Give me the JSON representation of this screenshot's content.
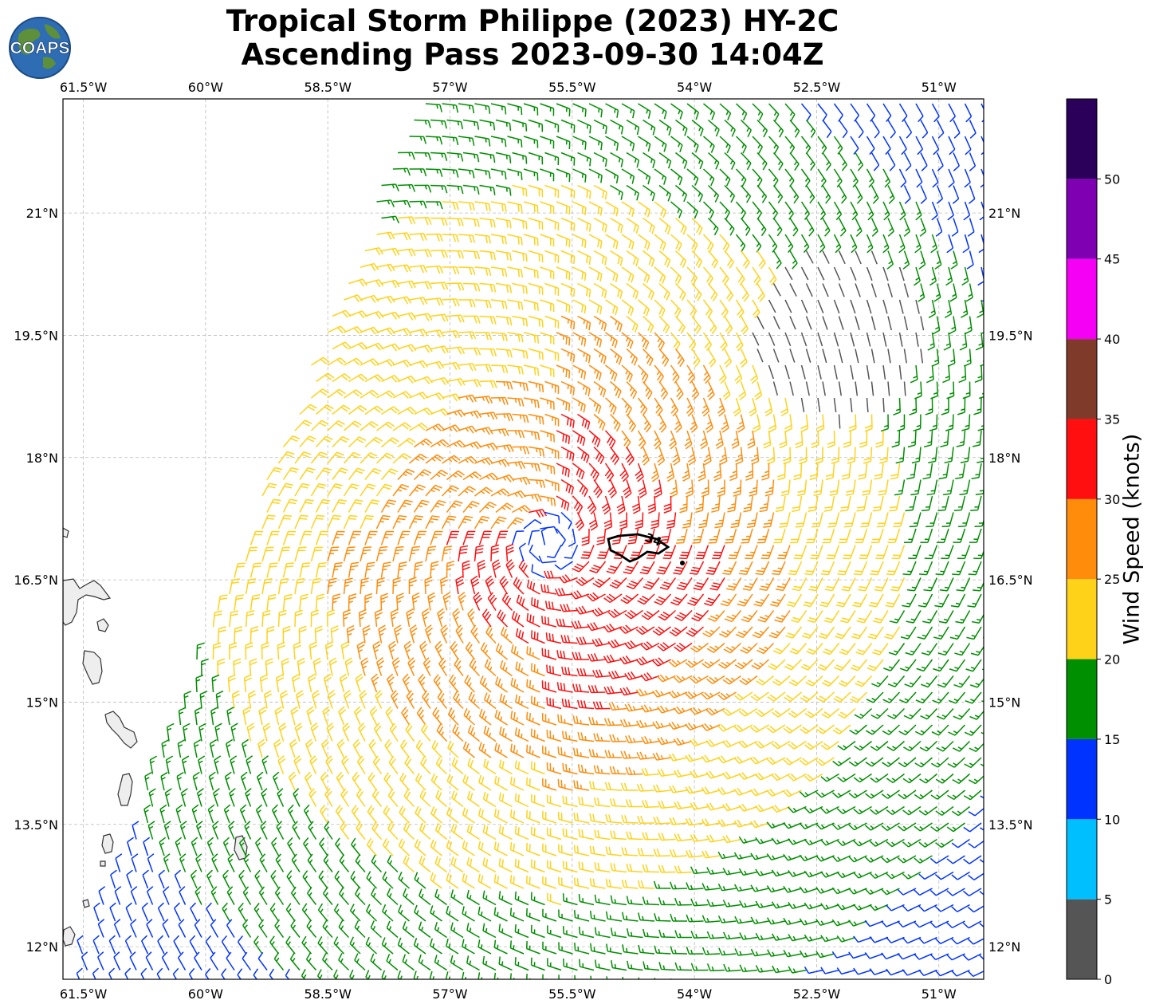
{
  "title": {
    "line1": "Tropical Storm Philippe (2023) HY-2C",
    "line2": "Ascending Pass 2023-09-30 14:04Z"
  },
  "logo": {
    "text": "COAPS",
    "icon": "globe-icon"
  },
  "map": {
    "lon_range": [
      -61.75,
      -50.45
    ],
    "lat_range": [
      11.6,
      22.4
    ],
    "lon_ticks": [
      {
        "value": -61.5,
        "label": "61.5°W"
      },
      {
        "value": -60,
        "label": "60°W"
      },
      {
        "value": -58.5,
        "label": "58.5°W"
      },
      {
        "value": -57,
        "label": "57°W"
      },
      {
        "value": -55.5,
        "label": "55.5°W"
      },
      {
        "value": -54,
        "label": "54°W"
      },
      {
        "value": -52.5,
        "label": "52.5°W"
      },
      {
        "value": -51,
        "label": "51°W"
      }
    ],
    "lat_ticks": [
      {
        "value": 21,
        "label": "21°N"
      },
      {
        "value": 19.5,
        "label": "19.5°N"
      },
      {
        "value": 18,
        "label": "18°N"
      },
      {
        "value": 16.5,
        "label": "16.5°N"
      },
      {
        "value": 15,
        "label": "15°N"
      },
      {
        "value": 13.5,
        "label": "13.5°N"
      },
      {
        "value": 12,
        "label": "12°N"
      }
    ],
    "storm_center": {
      "lon": -55.8,
      "lat": 16.95
    },
    "contour": {
      "label": "34",
      "knots": 34
    }
  },
  "colorbar": {
    "label": "Wind Speed (knots)",
    "min": 0,
    "max": 55,
    "bins": [
      {
        "from": 0,
        "to": 5,
        "color": "#555555"
      },
      {
        "from": 5,
        "to": 10,
        "color": "#00BFFF"
      },
      {
        "from": 10,
        "to": 15,
        "color": "#0033FF"
      },
      {
        "from": 15,
        "to": 20,
        "color": "#008F00"
      },
      {
        "from": 20,
        "to": 25,
        "color": "#FFD21A"
      },
      {
        "from": 25,
        "to": 30,
        "color": "#FF8C0A"
      },
      {
        "from": 30,
        "to": 35,
        "color": "#FF0F0F"
      },
      {
        "from": 35,
        "to": 40,
        "color": "#7F3A2A"
      },
      {
        "from": 40,
        "to": 45,
        "color": "#F500F5"
      },
      {
        "from": 45,
        "to": 50,
        "color": "#7F00B3"
      },
      {
        "from": 50,
        "to": 55,
        "color": "#2A005A"
      }
    ],
    "ticks": [
      0,
      5,
      10,
      15,
      20,
      25,
      30,
      35,
      40,
      45,
      50
    ]
  }
}
